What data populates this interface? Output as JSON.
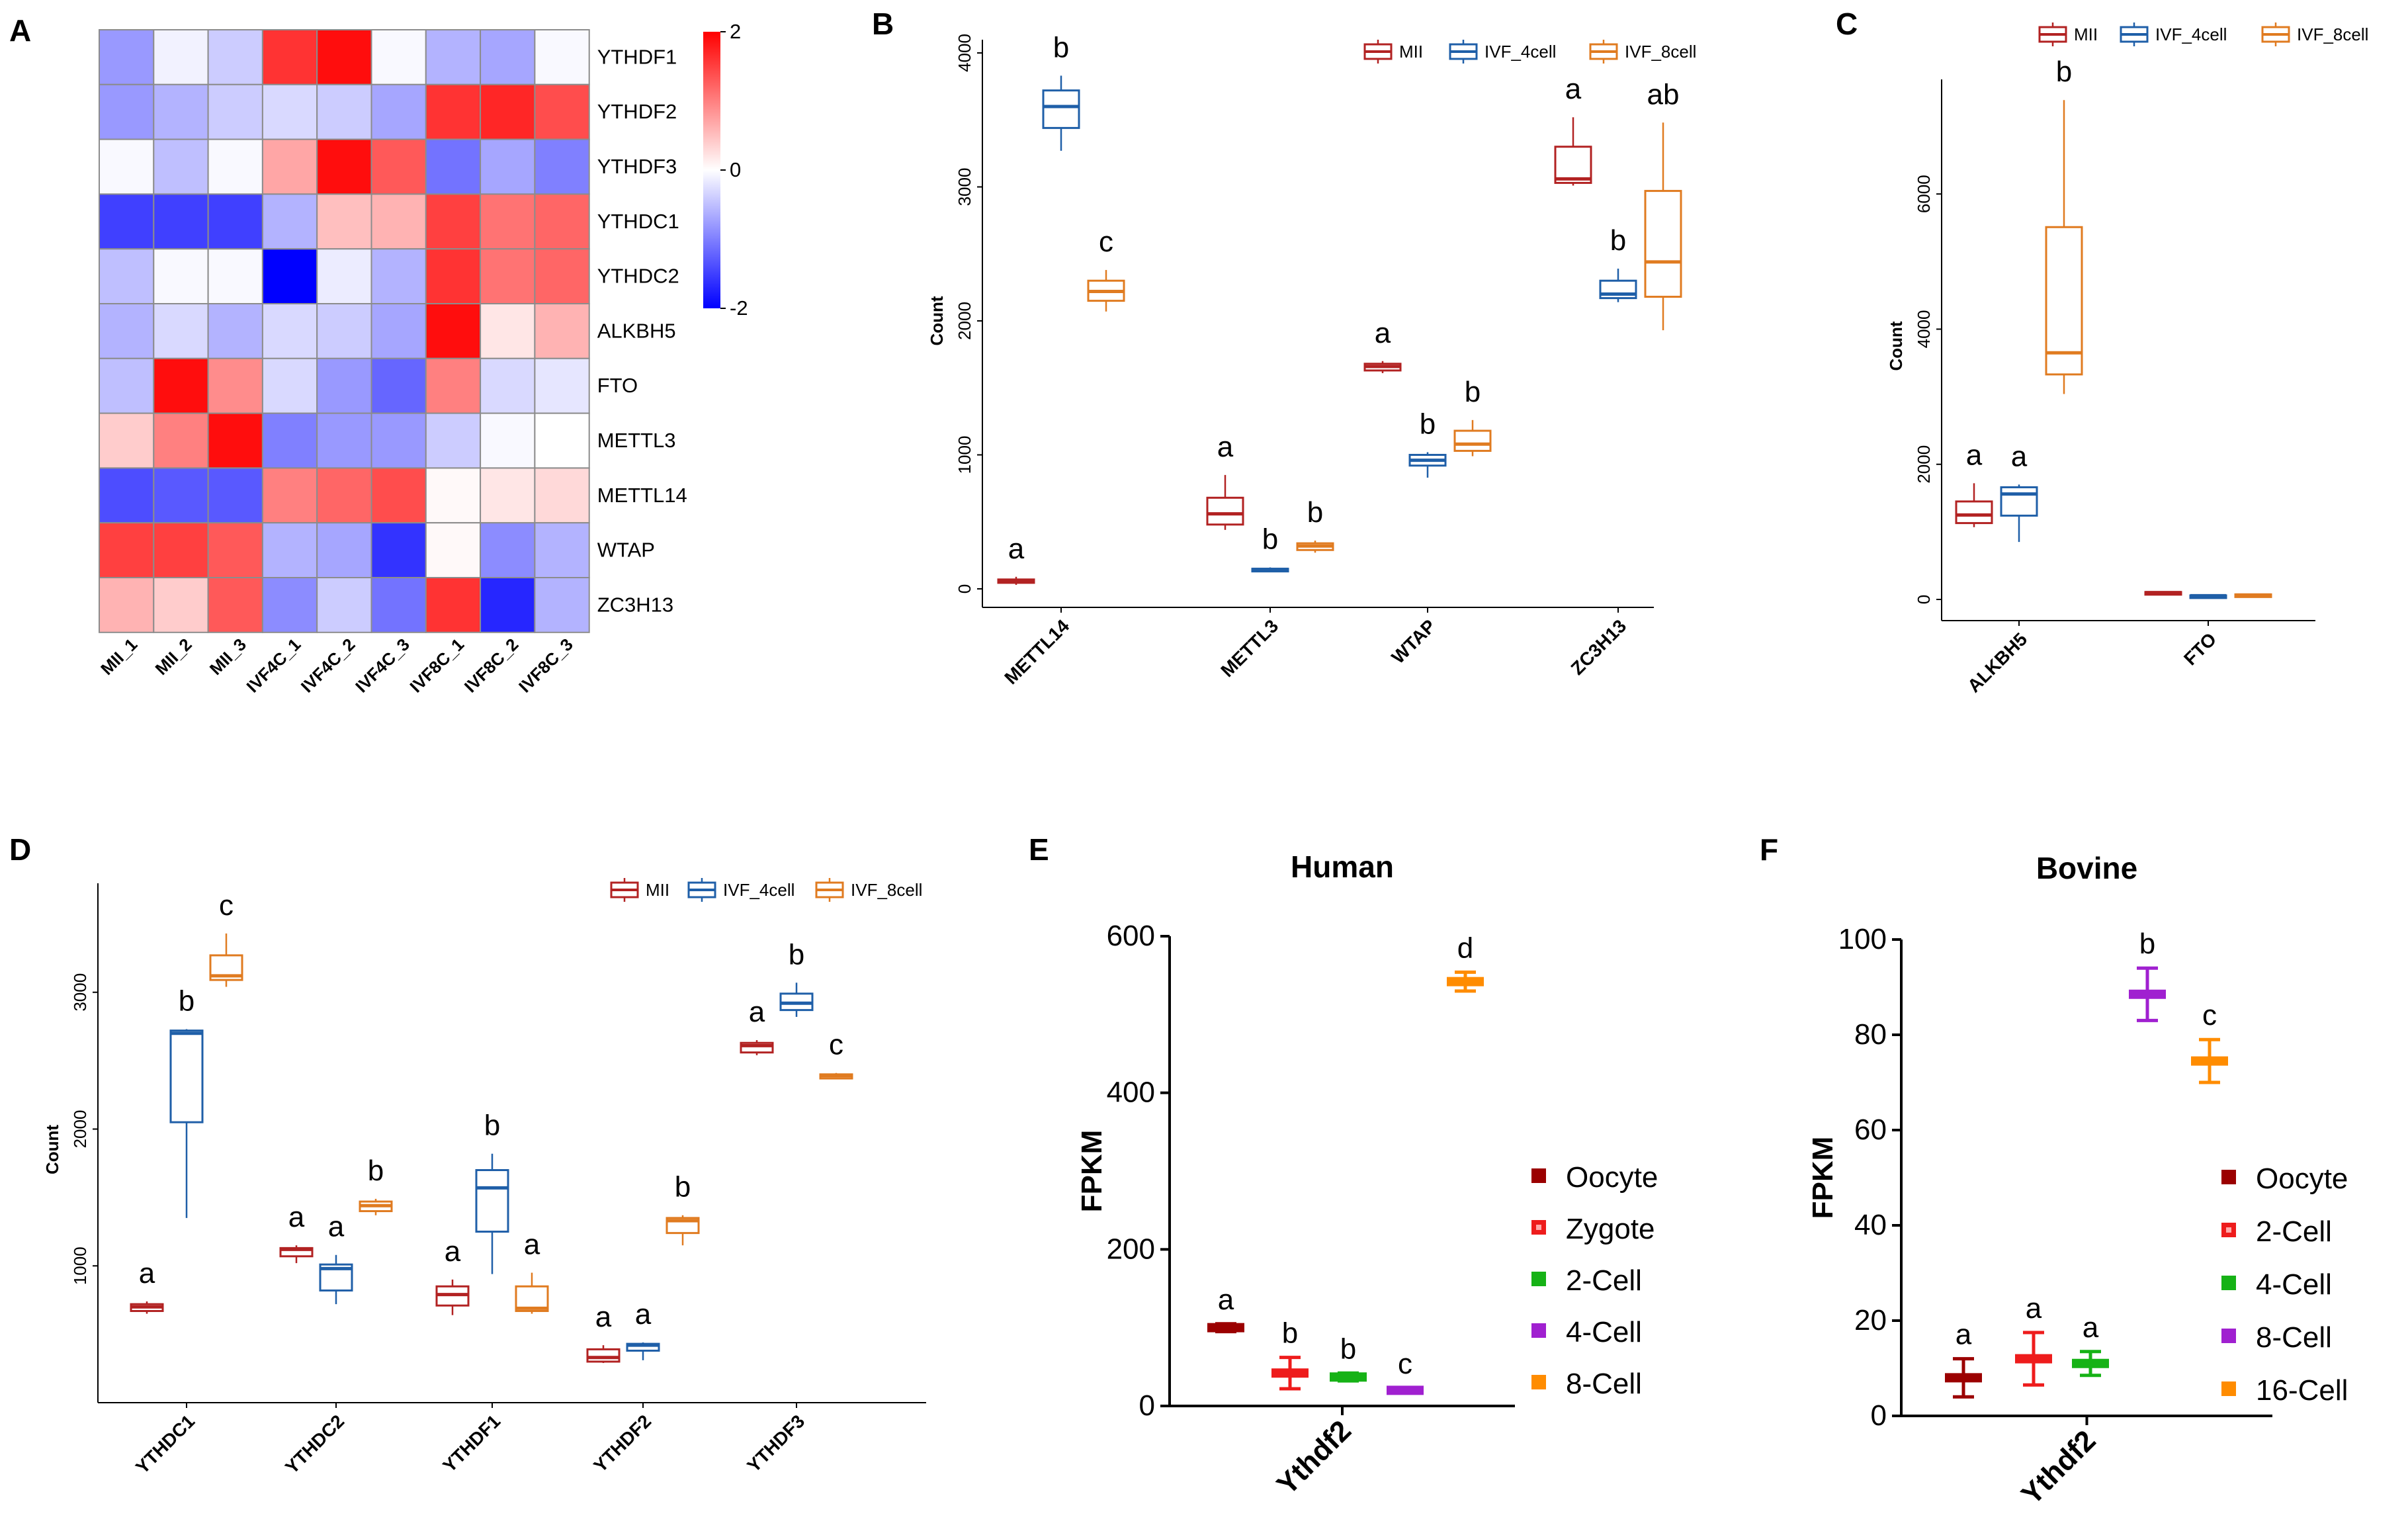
{
  "panel_labels": [
    "A",
    "B",
    "C",
    "D",
    "E",
    "F"
  ],
  "colors": {
    "MII": "#b22222",
    "IVF_4cell": "#1f5fa8",
    "IVF_8cell": "#e07b20",
    "Oocyte": "#9b0000",
    "Zygote": "#ee1c1c",
    "2-Cell": "#16b216",
    "4-Cell": "#a020d0",
    "8-Cell": "#ff8c00",
    "16-Cell": "#ff8c00",
    "bovine_2-Cell": "#ee1c1c",
    "bovine_4-Cell": "#16b216",
    "bovine_8-Cell": "#a020d0"
  },
  "chart_data": [
    {
      "panel": "A",
      "type": "heatmap",
      "rows": [
        "YTHDF1",
        "YTHDF2",
        "YTHDF3",
        "YTHDC1",
        "YTHDC2",
        "ALKBH5",
        "FTO",
        "METTL3",
        "METTL14",
        "WTAP",
        "ZC3H13"
      ],
      "columns": [
        "MII_1",
        "MII_2",
        "MII_3",
        "IVF4C_1",
        "IVF4C_2",
        "IVF4C_3",
        "IVF8C_1",
        "IVF8C_2",
        "IVF8C_3"
      ],
      "values": [
        [
          -0.8,
          -0.1,
          -0.4,
          1.6,
          1.9,
          -0.05,
          -0.6,
          -0.7,
          -0.05
        ],
        [
          -0.8,
          -0.6,
          -0.4,
          -0.3,
          -0.4,
          -0.7,
          1.6,
          1.7,
          1.4
        ],
        [
          -0.05,
          -0.5,
          -0.05,
          0.7,
          1.9,
          1.3,
          -1.1,
          -0.7,
          -1.0
        ],
        [
          -1.5,
          -1.5,
          -1.5,
          -0.6,
          0.5,
          0.6,
          1.5,
          1.1,
          1.2
        ],
        [
          -0.5,
          -0.05,
          -0.05,
          -2.0,
          -0.15,
          -0.6,
          1.6,
          1.1,
          1.2
        ],
        [
          -0.6,
          -0.3,
          -0.6,
          -0.3,
          -0.4,
          -0.7,
          1.9,
          0.2,
          0.6
        ],
        [
          -0.5,
          1.9,
          0.9,
          -0.3,
          -0.8,
          -1.2,
          1.0,
          -0.3,
          -0.2
        ],
        [
          0.4,
          1.0,
          1.9,
          -1.0,
          -0.8,
          -0.8,
          -0.4,
          -0.05,
          0.0
        ],
        [
          -1.4,
          -1.3,
          -1.3,
          1.0,
          1.2,
          1.4,
          0.05,
          0.2,
          0.3
        ],
        [
          1.5,
          1.5,
          1.3,
          -0.6,
          -0.7,
          -1.6,
          0.05,
          -0.9,
          -0.6
        ],
        [
          0.6,
          0.4,
          1.3,
          -0.9,
          -0.4,
          -1.1,
          1.6,
          -1.7,
          -0.6
        ]
      ],
      "scale": {
        "min": -2,
        "max": 2,
        "ticks": [
          2,
          0,
          -2
        ],
        "tick_labels": [
          "2",
          "0",
          "-2"
        ]
      }
    },
    {
      "panel": "B",
      "type": "box",
      "ylabel": "Count",
      "ylim": [
        0,
        4000
      ],
      "yticks": [
        0,
        1000,
        2000,
        3000,
        4000
      ],
      "ytick_labels": [
        "0",
        "1000",
        "2000",
        "3000",
        "4000"
      ],
      "categories": [
        "METTL14",
        "METTL3",
        "WTAP",
        "ZC3H13"
      ],
      "series_names": [
        "MII",
        "IVF_4cell",
        "IVF_8cell"
      ],
      "boxes": [
        [
          [
            30,
            45,
            60,
            70,
            90
          ],
          [
            3270,
            3440,
            3600,
            3720,
            3830
          ],
          [
            2070,
            2150,
            2220,
            2300,
            2380
          ]
        ],
        [
          [
            440,
            480,
            560,
            680,
            850
          ],
          [
            130,
            140,
            145,
            150,
            160
          ],
          [
            270,
            290,
            320,
            340,
            360
          ]
        ],
        [
          [
            1610,
            1630,
            1660,
            1680,
            1700
          ],
          [
            830,
            920,
            960,
            1000,
            1020
          ],
          [
            990,
            1030,
            1080,
            1180,
            1260
          ]
        ],
        [
          [
            3010,
            3030,
            3060,
            3300,
            3520
          ],
          [
            2140,
            2170,
            2200,
            2300,
            2390
          ],
          [
            1930,
            2180,
            2440,
            2970,
            3480
          ]
        ]
      ],
      "letters": [
        [
          "a",
          "b",
          "c"
        ],
        [
          "a",
          "b",
          "b"
        ],
        [
          "a",
          "b",
          "b"
        ],
        [
          "a",
          "b",
          "ab"
        ]
      ]
    },
    {
      "panel": "C",
      "type": "box",
      "ylabel": "Count",
      "ylim": [
        0,
        7500
      ],
      "yticks": [
        0,
        2000,
        4000,
        6000
      ],
      "ytick_labels": [
        "0",
        "2000",
        "4000",
        "6000"
      ],
      "categories": [
        "ALKBH5",
        "FTO"
      ],
      "series_names": [
        "MII",
        "IVF_4cell",
        "IVF_8cell"
      ],
      "boxes": [
        [
          [
            1070,
            1130,
            1250,
            1450,
            1720
          ],
          [
            850,
            1240,
            1560,
            1660,
            1700
          ],
          [
            3040,
            3330,
            3650,
            5510,
            7390
          ]
        ],
        [
          [
            60,
            80,
            100,
            110,
            120
          ],
          [
            40,
            50,
            55,
            60,
            65
          ],
          [
            45,
            55,
            65,
            75,
            85
          ]
        ]
      ],
      "letters": [
        [
          "a",
          "a",
          "b"
        ],
        [
          "",
          "",
          ""
        ]
      ]
    },
    {
      "panel": "D",
      "type": "box",
      "ylabel": "Count",
      "ylim": [
        0,
        3700
      ],
      "yticks": [
        1000,
        2000,
        3000
      ],
      "ytick_labels": [
        "1000",
        "2000",
        "3000"
      ],
      "categories": [
        "YTHDC1",
        "YTHDC2",
        "YTHDF1",
        "YTHDF2",
        "YTHDF3"
      ],
      "series_names": [
        "MII",
        "IVF_4cell",
        "IVF_8cell"
      ],
      "boxes": [
        [
          [
            650,
            670,
            700,
            720,
            740
          ],
          [
            1350,
            2050,
            2700,
            2720,
            2730
          ],
          [
            3040,
            3090,
            3120,
            3270,
            3430
          ]
        ],
        [
          [
            1020,
            1070,
            1120,
            1130,
            1150
          ],
          [
            720,
            820,
            980,
            1010,
            1080
          ],
          [
            1370,
            1400,
            1440,
            1470,
            1490
          ]
        ],
        [
          [
            640,
            710,
            790,
            850,
            900
          ],
          [
            940,
            1250,
            1570,
            1700,
            1820
          ],
          [
            650,
            670,
            690,
            850,
            950
          ]
        ],
        [
          [
            290,
            300,
            330,
            390,
            420
          ],
          [
            310,
            380,
            420,
            430,
            440
          ],
          [
            1150,
            1240,
            1330,
            1350,
            1370
          ]
        ],
        [
          [
            2540,
            2560,
            2610,
            2630,
            2650
          ],
          [
            2820,
            2870,
            2920,
            2990,
            3070
          ],
          [
            2370,
            2370,
            2390,
            2400,
            2410
          ]
        ]
      ],
      "letters": [
        [
          "a",
          "b",
          "c"
        ],
        [
          "a",
          "a",
          "b"
        ],
        [
          "a",
          "b",
          "a"
        ],
        [
          "a",
          "a",
          "b"
        ],
        [
          "a",
          "b",
          "c"
        ]
      ]
    },
    {
      "panel": "E",
      "type": "scatter",
      "title": "Human",
      "ylabel": "FPKM",
      "xlabel": "Ythdf2",
      "ylim": [
        0,
        600
      ],
      "yticks": [
        0,
        200,
        400,
        600
      ],
      "ytick_labels": [
        "0",
        "200",
        "400",
        "600"
      ],
      "series": [
        {
          "name": "Oocyte",
          "mean": 100,
          "err": 5,
          "letter": "a"
        },
        {
          "name": "Zygote",
          "mean": 42,
          "err": 20,
          "letter": "b"
        },
        {
          "name": "2-Cell",
          "mean": 37,
          "err": 5,
          "letter": "b"
        },
        {
          "name": "4-Cell",
          "mean": 20,
          "err": 3,
          "letter": "c"
        },
        {
          "name": "8-Cell",
          "mean": 542,
          "err": 12,
          "letter": "d"
        }
      ]
    },
    {
      "panel": "F",
      "type": "scatter",
      "title": "Bovine",
      "ylabel": "FPKM",
      "xlabel": "Ythdf2",
      "ylim": [
        0,
        100
      ],
      "yticks": [
        0,
        20,
        40,
        60,
        80,
        100
      ],
      "ytick_labels": [
        "0",
        "20",
        "40",
        "60",
        "80",
        "100"
      ],
      "series": [
        {
          "name": "Oocyte",
          "mean": 8,
          "err": 4,
          "letter": "a"
        },
        {
          "name": "2-Cell",
          "mean": 12,
          "err": 5.5,
          "letter": "a"
        },
        {
          "name": "4-Cell",
          "mean": 11,
          "err": 2.5,
          "letter": "a"
        },
        {
          "name": "8-Cell",
          "mean": 88.5,
          "err": 5.5,
          "letter": "b"
        },
        {
          "name": "16-Cell",
          "mean": 74.5,
          "err": 4.5,
          "letter": "c"
        }
      ]
    }
  ]
}
